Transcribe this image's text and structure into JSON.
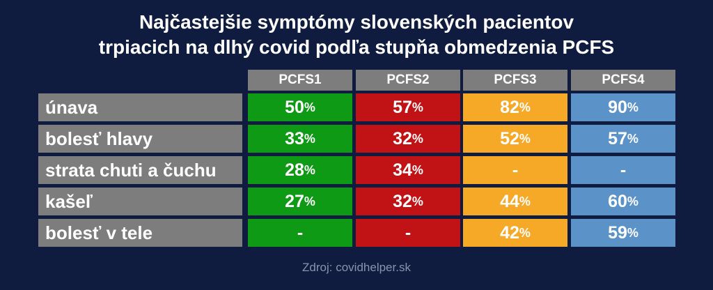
{
  "title_line1": "Najčastejšie symptómy slovenských pacientov",
  "title_line2": "trpiacich na dlhý covid podľa stupňa obmedzenia PCFS",
  "source": "Zdroj: covidhelper.sk",
  "colors": {
    "PCFS1": "#0f9a16",
    "PCFS2": "#c11216",
    "PCFS3": "#f6a827",
    "PCFS4": "#5b93c9",
    "label_bg": "#7d7d7d",
    "background": "#0f1c3f"
  },
  "chart_data": {
    "type": "table",
    "columns": [
      "PCFS1",
      "PCFS2",
      "PCFS3",
      "PCFS4"
    ],
    "rows": [
      {
        "label": "únava",
        "values": [
          "50",
          "57",
          "82",
          "90"
        ]
      },
      {
        "label": "bolesť hlavy",
        "values": [
          "33",
          "32",
          "52",
          "57"
        ]
      },
      {
        "label": "strata chuti a čuchu",
        "values": [
          "28",
          "34",
          "-",
          "-"
        ]
      },
      {
        "label": "kašeľ",
        "values": [
          "27",
          "32",
          "44",
          "60"
        ]
      },
      {
        "label": "bolesť v tele",
        "values": [
          "-",
          "-",
          "42",
          "59"
        ]
      }
    ],
    "unit": "%"
  }
}
